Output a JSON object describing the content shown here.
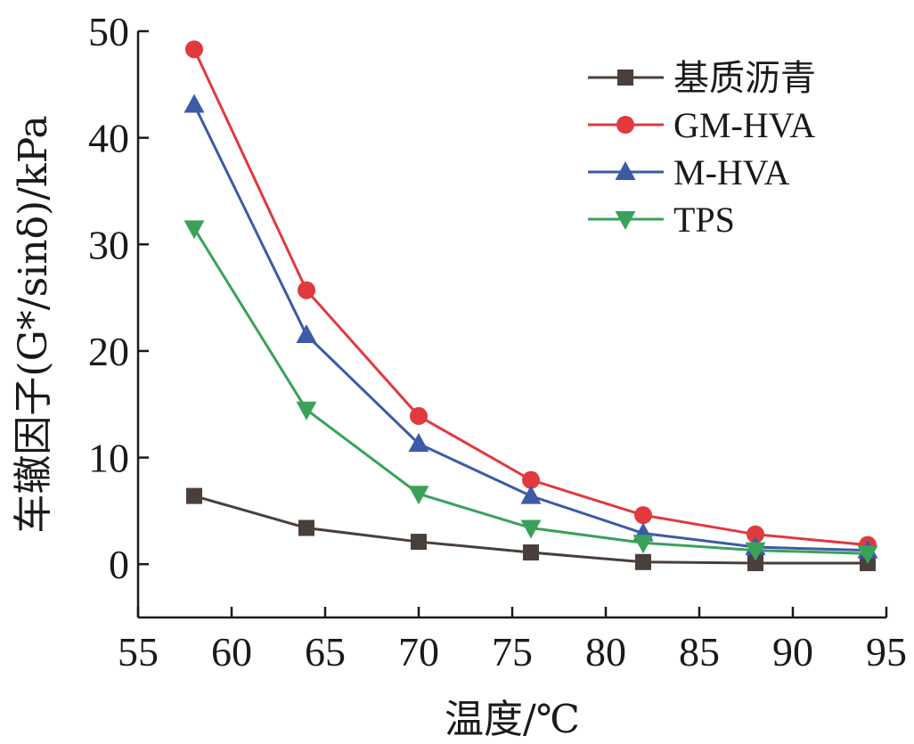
{
  "chart_data": {
    "type": "line",
    "xlabel": "温度/℃",
    "ylabel": "车辙因子(G*/sinδ)/kPa",
    "xlim": [
      55,
      95
    ],
    "ylim": [
      -5,
      50
    ],
    "xticks": [
      55,
      60,
      65,
      70,
      75,
      80,
      85,
      90,
      95
    ],
    "yticks": [
      0,
      10,
      20,
      30,
      40,
      50
    ],
    "grid": false,
    "legend_position": "top-right",
    "x": [
      58,
      64,
      70,
      76,
      82,
      88,
      94
    ],
    "series": [
      {
        "name": "基质沥青",
        "marker": "square",
        "color": "#4a3f3b",
        "values": [
          6.4,
          3.4,
          2.1,
          1.1,
          0.2,
          0.1,
          0.1
        ]
      },
      {
        "name": "GM-HVA",
        "marker": "circle",
        "color": "#e0393e",
        "values": [
          48.3,
          25.7,
          13.9,
          7.9,
          4.6,
          2.8,
          1.8
        ]
      },
      {
        "name": "M-HVA",
        "marker": "triangle-up",
        "color": "#3d5aa6",
        "values": [
          43.1,
          21.5,
          11.3,
          6.4,
          2.9,
          1.6,
          1.3
        ]
      },
      {
        "name": "TPS",
        "marker": "triangle-down",
        "color": "#3aa15a",
        "values": [
          31.5,
          14.5,
          6.6,
          3.4,
          2.0,
          1.3,
          1.0
        ]
      }
    ]
  }
}
